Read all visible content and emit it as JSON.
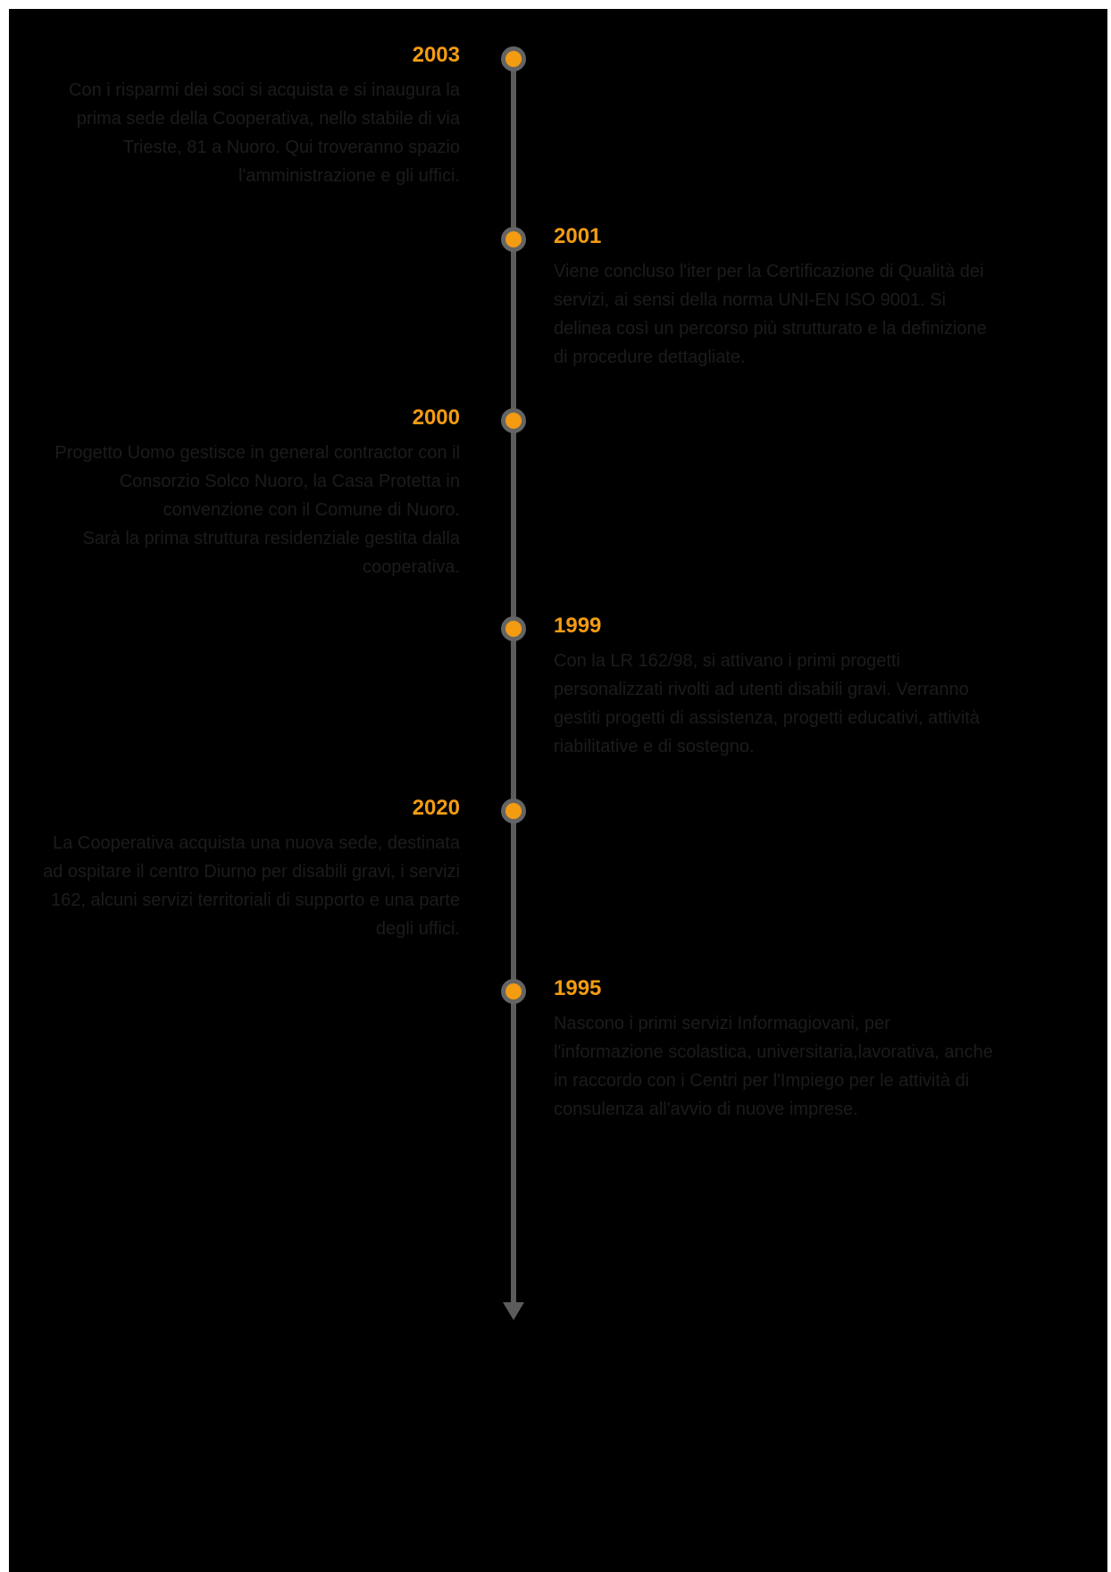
{
  "timeline": {
    "events": [
      {
        "year": "2003",
        "text": "Con i risparmi dei soci si acquista e si inaugura la prima sede della Cooperativa, nello stabile di via Trieste, 81 a Nuoro. Qui troveranno spazio l'amministrazione e gli uffici."
      },
      {
        "year": "2001",
        "text": "Viene concluso l'iter per la Certificazione di Qualità dei servizi, ai sensi della norma UNI-EN ISO 9001. Si delinea così un percorso più strutturato e la definizione di procedure dettagliate."
      },
      {
        "year": "2000",
        "text": "Progetto Uomo gestisce in general contractor con il Consorzio Solco Nuoro, la Casa Protetta in convenzione con il Comune di Nuoro.\nSarà la prima struttura residenziale gestita dalla cooperativa."
      },
      {
        "year": "1999",
        "text": "Con la LR 162/98, si attivano i primi progetti personalizzati rivolti ad utenti disabili gravi. Verranno gestiti progetti di assistenza, progetti educativi, attività riabilitative e di sostegno."
      },
      {
        "year": "2020",
        "text": "La Cooperativa acquista una nuova sede, destinata ad ospitare il centro Diurno per disabili gravi, i servizi 162, alcuni servizi territoriali di supporto e una parte degli uffici."
      },
      {
        "year": "1995",
        "text": "Nascono i primi servizi Informagiovani,  per l'informazione scolastica, universitaria,lavorativa, anche in raccordo con i Centri per l'Impiego per le attività di consulenza all'avvio di nuove imprese."
      }
    ]
  },
  "colors": {
    "background": "#000000",
    "accent": "#f39c12",
    "axis": "#5c5c5c",
    "body_text": "#1c1c1c"
  },
  "icons": {
    "axis_end": "arrow-down-icon",
    "event_marker": "timeline-dot-icon"
  }
}
